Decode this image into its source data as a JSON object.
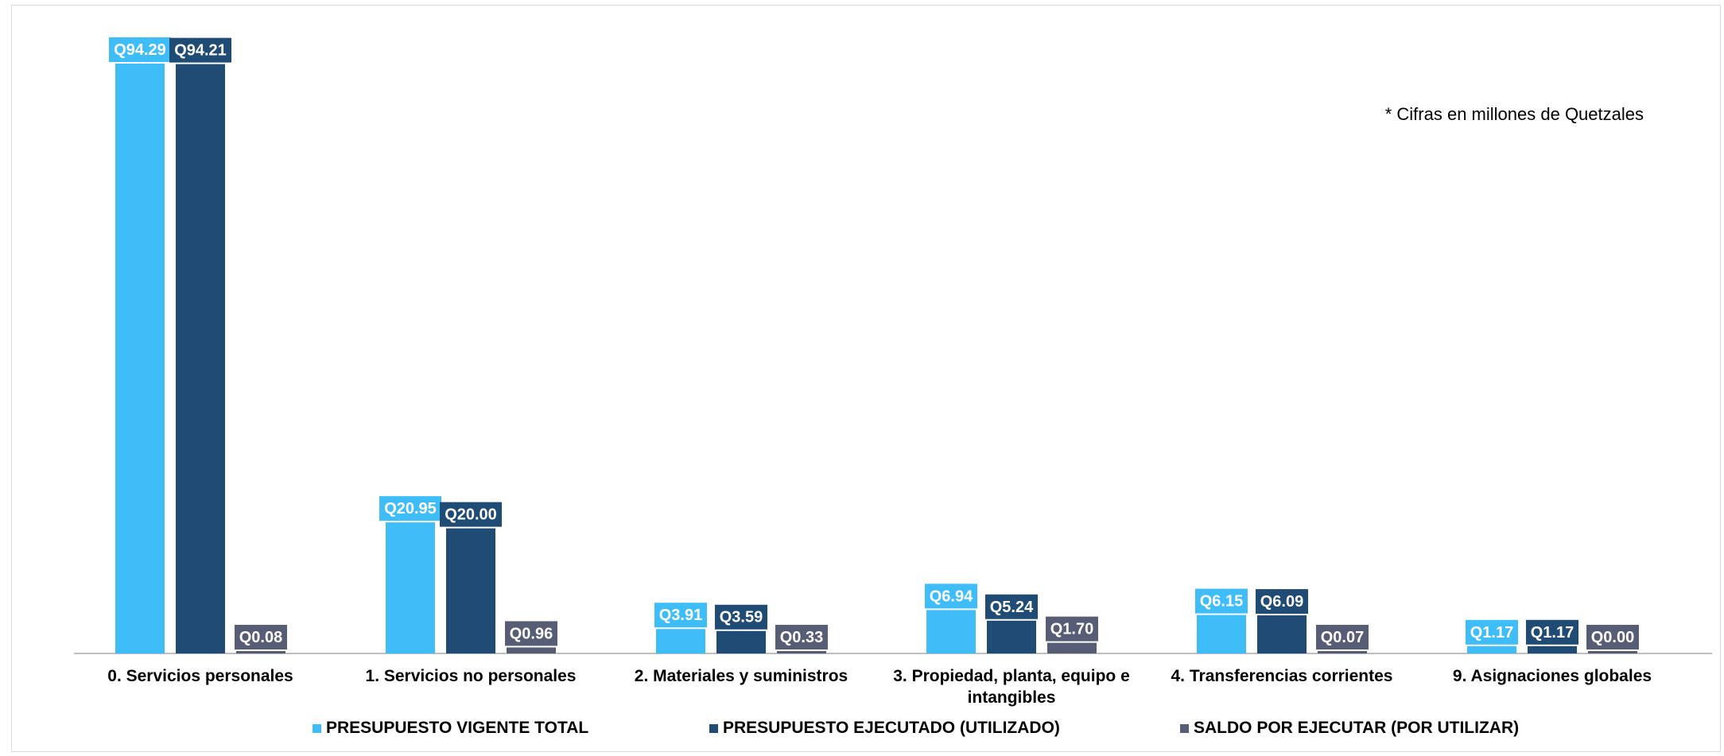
{
  "chart_data": {
    "type": "bar",
    "categories": [
      "0. Servicios personales",
      "1. Servicios no personales",
      "2. Materiales y suministros",
      "3. Propiedad, planta, equipo e intangibles",
      "4. Transferencias corrientes",
      "9. Asignaciones globales"
    ],
    "series": [
      {
        "name": "PRESUPUESTO VIGENTE TOTAL",
        "color": "#3fbdf9",
        "values": [
          94.29,
          20.95,
          3.91,
          6.94,
          6.15,
          1.17
        ],
        "labels": [
          "Q94.29",
          "Q20.95",
          "Q3.91",
          "Q6.94",
          "Q6.15",
          "Q1.17"
        ]
      },
      {
        "name": "PRESUPUESTO EJECUTADO (UTILIZADO)",
        "color": "#1f4b74",
        "values": [
          94.21,
          20.0,
          3.59,
          5.24,
          6.09,
          1.17
        ],
        "labels": [
          "Q94.21",
          "Q20.00",
          "Q3.59",
          "Q5.24",
          "Q6.09",
          "Q1.17"
        ]
      },
      {
        "name": "SALDO POR EJECUTAR (POR UTILIZAR)",
        "color": "#575d75",
        "values": [
          0.08,
          0.96,
          0.33,
          1.7,
          0.07,
          0.0
        ],
        "labels": [
          "Q0.08",
          "Q0.96",
          "Q0.33",
          "Q1.70",
          "Q0.07",
          "Q0.00"
        ]
      }
    ],
    "annotation": "* Cifras en millones de Quetzales",
    "title": "",
    "xlabel": "",
    "ylabel": "",
    "ylim": [
      0,
      94.29
    ],
    "grid": false,
    "legend_position": "bottom",
    "y_axis_visible": false
  }
}
